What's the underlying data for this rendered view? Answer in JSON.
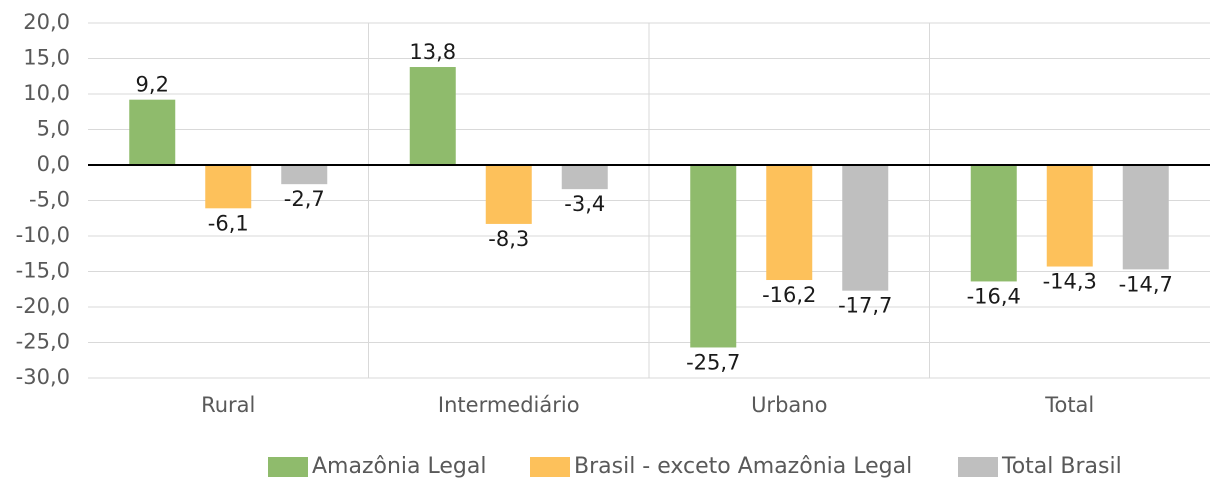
{
  "chart_data": {
    "type": "bar",
    "categories": [
      "Rural",
      "Intermediário",
      "Urbano",
      "Total"
    ],
    "series": [
      {
        "name": "Amazônia Legal",
        "color": "#8fbb6c",
        "values": [
          9.2,
          13.8,
          -25.7,
          -16.4
        ],
        "value_labels": [
          "9,2",
          "13,8",
          "-25,7",
          "-16,4"
        ]
      },
      {
        "name": "Brasil - exceto Amazônia Legal",
        "color": "#fdc15b",
        "values": [
          -6.1,
          -8.3,
          -16.2,
          -14.3
        ],
        "value_labels": [
          "-6,1",
          "-8,3",
          "-16,2",
          "-14,3"
        ]
      },
      {
        "name": "Total Brasil",
        "color": "#bfbfbf",
        "values": [
          -2.7,
          -3.4,
          -17.7,
          -14.7
        ],
        "value_labels": [
          "-2,7",
          "-3,4",
          "-17,7",
          "-14,7"
        ]
      }
    ],
    "ylim": [
      -30,
      20
    ],
    "yticks": [
      {
        "value": -30,
        "label": "-30,0"
      },
      {
        "value": -25,
        "label": "-25,0"
      },
      {
        "value": -20,
        "label": "-20,0"
      },
      {
        "value": -15,
        "label": "-15,0"
      },
      {
        "value": -10,
        "label": "-10,0"
      },
      {
        "value": -5,
        "label": "-5,0"
      },
      {
        "value": 0,
        "label": "0,0"
      },
      {
        "value": 5,
        "label": "5,0"
      },
      {
        "value": 10,
        "label": "10,0"
      },
      {
        "value": 15,
        "label": "15,0"
      },
      {
        "value": 20,
        "label": "20,0"
      }
    ],
    "grid": true,
    "legend": "bottom"
  }
}
